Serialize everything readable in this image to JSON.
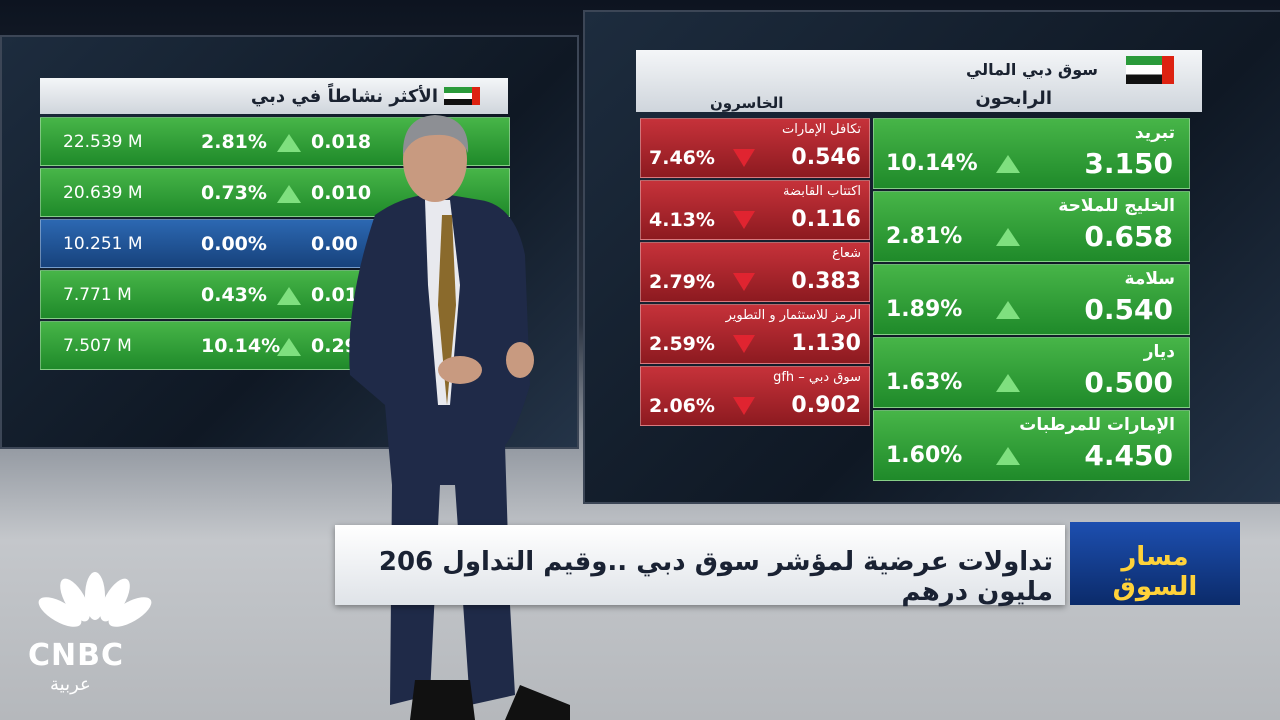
{
  "most_active": {
    "title": "الأكثر نشاطاً في دبي",
    "rows": [
      {
        "volume": "22.539 M",
        "change_pct": "2.81%",
        "change": "0.018"
      },
      {
        "volume": "20.639 M",
        "change_pct": "0.73%",
        "change": "0.010"
      },
      {
        "volume": "10.251 M",
        "change_pct": "0.00%",
        "change": "0.00"
      },
      {
        "volume": "7.771 M",
        "change_pct": "0.43%",
        "change": "0.01"
      },
      {
        "volume": "7.507 M",
        "change_pct": "10.14%",
        "change": "0.290"
      }
    ]
  },
  "market": {
    "title": "سوق دبي المالي",
    "gainers_title": "الرابحون",
    "losers_title": "الخاسرون",
    "gainers": [
      {
        "name": "تبريد",
        "change_pct": "10.14%",
        "price": "3.150"
      },
      {
        "name": "الخليج للملاحة",
        "change_pct": "2.81%",
        "price": "0.658"
      },
      {
        "name": "سلامة",
        "change_pct": "1.89%",
        "price": "0.540"
      },
      {
        "name": "ديار",
        "change_pct": "1.63%",
        "price": "0.500"
      },
      {
        "name": "الإمارات للمرطبات",
        "change_pct": "1.60%",
        "price": "4.450"
      }
    ],
    "losers": [
      {
        "name": "تكافل الإمارات",
        "change_pct": "7.46%",
        "price": "0.546"
      },
      {
        "name": "اكتتاب القابضة",
        "change_pct": "4.13%",
        "price": "0.116"
      },
      {
        "name": "شعاع",
        "change_pct": "2.79%",
        "price": "0.383"
      },
      {
        "name": "الرمز للاستثمار و التطوير",
        "change_pct": "2.59%",
        "price": "1.130"
      },
      {
        "name": "gfh – سوق دبي",
        "change_pct": "2.06%",
        "price": "0.902"
      }
    ]
  },
  "ticker": {
    "headline": "تداولات عرضية لمؤشر سوق دبي ..وقيم التداول 206 مليون درهم",
    "program": "مسار السوق"
  },
  "logo": {
    "brand": "CNBC",
    "sub": "عربية"
  }
}
